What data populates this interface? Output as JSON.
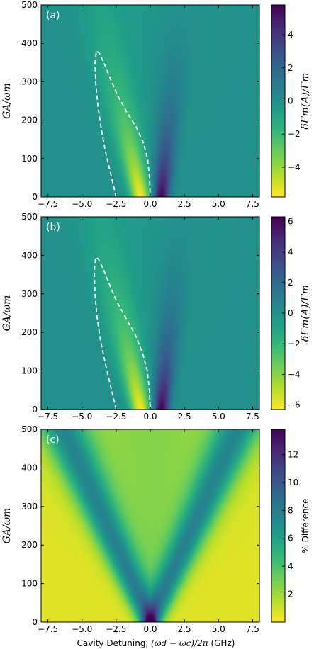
{
  "chart_data": [
    {
      "type": "heatmap",
      "panel_label": "(a)",
      "ylabel": "GA/ωm",
      "colorbar_label": "δΓm(A)/Γm",
      "xlim": [
        -8,
        8
      ],
      "ylim": [
        0,
        500
      ],
      "clim": [
        -5.8,
        5.8
      ],
      "colormap": "viridis_r",
      "xticks": [
        -7.5,
        -5.0,
        -2.5,
        0.0,
        2.5,
        5.0,
        7.5
      ],
      "xtick_labels": [
        "−7.5",
        "−5.0",
        "−2.5",
        "0.0",
        "2.5",
        "5.0",
        "7.5"
      ],
      "yticks": [
        0,
        100,
        200,
        300,
        400,
        500
      ],
      "ytick_labels": [
        "0",
        "100",
        "200",
        "300",
        "400",
        "500"
      ],
      "cticks": [
        -4,
        -2,
        0,
        2,
        4
      ],
      "ctick_labels": [
        "−4",
        "−2",
        "0",
        "2",
        "4"
      ],
      "contour": {
        "style": "dashed",
        "color": "#ffffff",
        "x": [
          -2.5,
          -2.9,
          -3.3,
          -3.6,
          -3.85,
          -4.0,
          -4.05,
          -3.95,
          -3.75,
          -3.4,
          -2.95,
          -2.4,
          -1.7,
          -1.0,
          -0.5,
          -0.2,
          -0.05,
          0.0
        ],
        "y": [
          0,
          60,
          120,
          180,
          240,
          300,
          350,
          380,
          375,
          350,
          310,
          265,
          220,
          180,
          140,
          100,
          50,
          0
        ]
      },
      "features": {
        "negative_peak": {
          "x": -0.7,
          "y": 0,
          "value": -5.8
        },
        "positive_peak": {
          "x": 0.8,
          "y": 0,
          "value": 5.8
        }
      }
    },
    {
      "type": "heatmap",
      "panel_label": "(b)",
      "ylabel": "GA/ωm",
      "colorbar_label": "δΓm(A)/Γm",
      "xlim": [
        -8,
        8
      ],
      "ylim": [
        0,
        500
      ],
      "clim": [
        -6.3,
        6.3
      ],
      "colormap": "viridis_r",
      "xticks": [
        -7.5,
        -5.0,
        -2.5,
        0.0,
        2.5,
        5.0,
        7.5
      ],
      "xtick_labels": [
        "−7.5",
        "−5.0",
        "−2.5",
        "0.0",
        "2.5",
        "5.0",
        "7.5"
      ],
      "yticks": [
        0,
        100,
        200,
        300,
        400,
        500
      ],
      "ytick_labels": [
        "0",
        "100",
        "200",
        "300",
        "400",
        "500"
      ],
      "cticks": [
        -6,
        -4,
        -2,
        0,
        2,
        4,
        6
      ],
      "ctick_labels": [
        "−6",
        "−4",
        "−2",
        "0",
        "2",
        "4",
        "6"
      ],
      "contour": {
        "style": "dashed",
        "color": "#ffffff",
        "x": [
          -2.5,
          -2.9,
          -3.3,
          -3.65,
          -3.9,
          -4.05,
          -4.1,
          -4.0,
          -3.8,
          -3.45,
          -3.0,
          -2.45,
          -1.75,
          -1.05,
          -0.55,
          -0.22,
          -0.06,
          0.0
        ],
        "y": [
          0,
          60,
          120,
          180,
          240,
          300,
          360,
          395,
          390,
          365,
          325,
          280,
          235,
          190,
          145,
          100,
          50,
          0
        ]
      },
      "features": {
        "negative_peak": {
          "x": -0.7,
          "y": 0,
          "value": -6.3
        },
        "positive_peak": {
          "x": 0.8,
          "y": 0,
          "value": 6.3
        }
      }
    },
    {
      "type": "heatmap",
      "panel_label": "(c)",
      "ylabel": "GA/ωm",
      "xlabel_text": "Cavity Detuning, ",
      "xlabel_math": "(ωd − ωc)/2π",
      "xlabel_unit": " (GHz)",
      "colorbar_label": "% Difference",
      "xlim": [
        -8,
        8
      ],
      "ylim": [
        0,
        500
      ],
      "clim": [
        0,
        13.8
      ],
      "colormap": "viridis_r",
      "xticks": [
        -7.5,
        -5.0,
        -2.5,
        0.0,
        2.5,
        5.0,
        7.5
      ],
      "xtick_labels": [
        "−7.5",
        "−5.0",
        "−2.5",
        "0.0",
        "2.5",
        "5.0",
        "7.5"
      ],
      "yticks": [
        0,
        100,
        200,
        300,
        400,
        500
      ],
      "ytick_labels": [
        "0",
        "100",
        "200",
        "300",
        "400",
        "500"
      ],
      "cticks": [
        2,
        4,
        6,
        8,
        10,
        12
      ],
      "ctick_labels": [
        "2",
        "4",
        "6",
        "8",
        "10",
        "12"
      ],
      "features": {
        "peak": {
          "x": 0,
          "y": 0,
          "value": 13.8
        },
        "v_arms_slope_ghz_per_unit": 0.0128
      }
    }
  ]
}
